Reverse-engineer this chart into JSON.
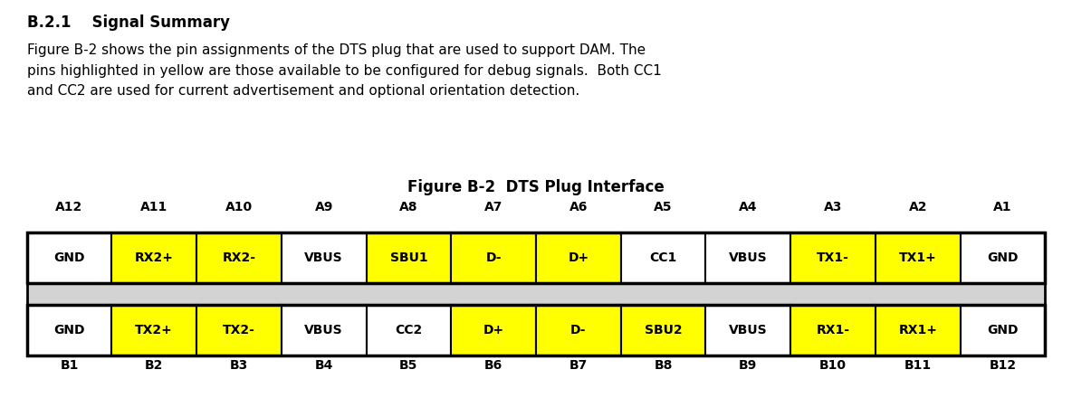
{
  "title": "Figure B-2  DTS Plug Interface",
  "heading": "B.2.1    Signal Summary",
  "body_text": "Figure B-2 shows the pin assignments of the DTS plug that are used to support DAM. The\npins highlighted in yellow are those available to be configured for debug signals.  Both CC1\nand CC2 are used for current advertisement and optional orientation detection.",
  "top_labels": [
    "A12",
    "A11",
    "A10",
    "A9",
    "A8",
    "A7",
    "A6",
    "A5",
    "A4",
    "A3",
    "A2",
    "A1"
  ],
  "bottom_labels": [
    "B1",
    "B2",
    "B3",
    "B4",
    "B5",
    "B6",
    "B7",
    "B8",
    "B9",
    "B10",
    "B11",
    "B12"
  ],
  "row_top": [
    "GND",
    "RX2+",
    "RX2-",
    "VBUS",
    "SBU1",
    "D-",
    "D+",
    "CC1",
    "VBUS",
    "TX1-",
    "TX1+",
    "GND"
  ],
  "row_bottom": [
    "GND",
    "TX2+",
    "TX2-",
    "VBUS",
    "CC2",
    "D+",
    "D-",
    "SBU2",
    "VBUS",
    "RX1-",
    "RX1+",
    "GND"
  ],
  "top_yellow": [
    1,
    2,
    4,
    5,
    6,
    9,
    10
  ],
  "bottom_yellow": [
    1,
    2,
    5,
    6,
    7,
    9,
    10
  ],
  "yellow": "#FFFF00",
  "white": "#FFFFFF",
  "gray": "#D3D3D3",
  "black": "#000000",
  "background": "#FFFFFF",
  "heading_fontsize": 12,
  "body_fontsize": 11,
  "title_fontsize": 12,
  "label_fontsize": 10,
  "cell_fontsize": 10
}
